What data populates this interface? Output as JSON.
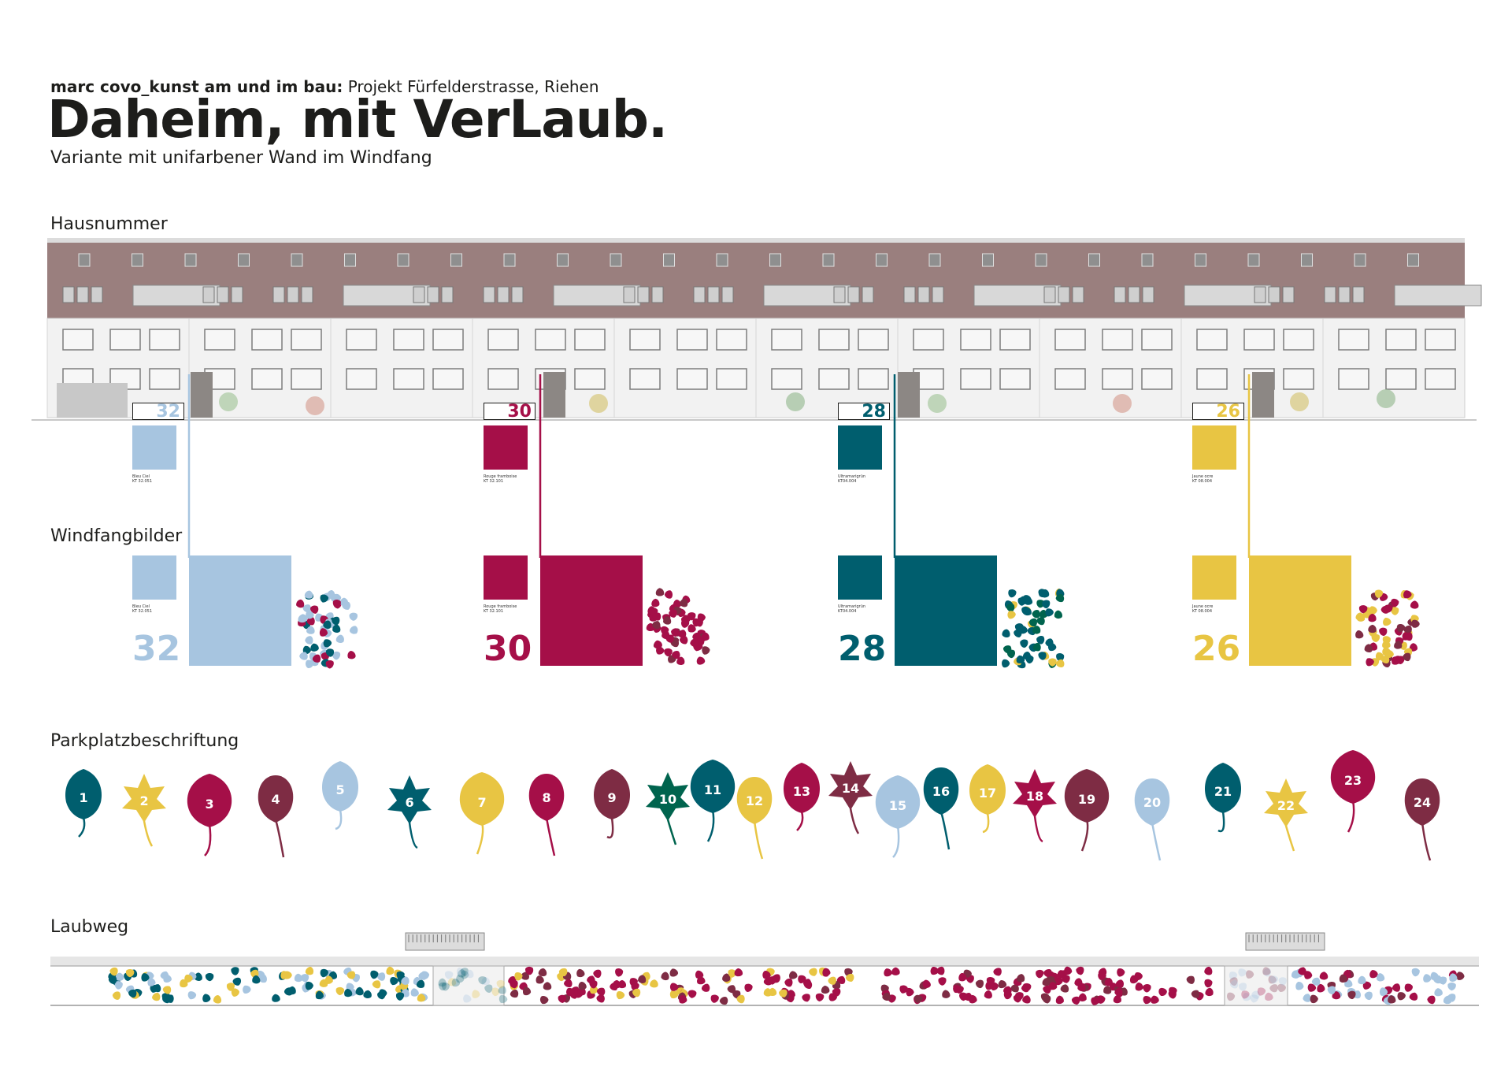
{
  "header": {
    "author": "marc covo_kunst am und im bau:",
    "project": " Projekt  Fürfelderstrasse, Riehen",
    "title": "Daheim, mit VerLaub.",
    "subtitle": "Variante mit unifarbener Wand im Windfang"
  },
  "sections": {
    "hausnummer": "Hausnummer",
    "windfang": "Windfangbilder",
    "parkplatz": "Parkplatzbeschriftung",
    "laubweg": "Laubweg"
  },
  "houses": [
    {
      "number": "32",
      "color": "#a7c5e0",
      "caption": "Bleu Ciel\nKT 32.051"
    },
    {
      "number": "30",
      "color": "#a50f48",
      "caption": "Rouge framboise\nKT 32.101"
    },
    {
      "number": "28",
      "color": "#005e6e",
      "caption": "Ultramarigrün\nKT04.004"
    },
    {
      "number": "26",
      "color": "#e8c543",
      "caption": "Jaune ocre\nKT 08.004"
    }
  ],
  "colors": {
    "blue": "#a7c5e0",
    "raspberry": "#a50f48",
    "teal": "#005e6e",
    "yellow": "#e8c543",
    "bordeaux": "#7e2c44",
    "green": "#00644e",
    "roof": "#9a7f7e",
    "facade": "#f2f2f2"
  },
  "parking_leaves": [
    {
      "n": "1",
      "color": "teal"
    },
    {
      "n": "2",
      "color": "yellow"
    },
    {
      "n": "3",
      "color": "raspberry"
    },
    {
      "n": "4",
      "color": "bordeaux"
    },
    {
      "n": "5",
      "color": "blue"
    },
    {
      "n": "6",
      "color": "teal"
    },
    {
      "n": "7",
      "color": "yellow"
    },
    {
      "n": "8",
      "color": "raspberry"
    },
    {
      "n": "9",
      "color": "bordeaux"
    },
    {
      "n": "10",
      "color": "green"
    },
    {
      "n": "11",
      "color": "teal"
    },
    {
      "n": "12",
      "color": "yellow"
    },
    {
      "n": "13",
      "color": "raspberry"
    },
    {
      "n": "14",
      "color": "bordeaux"
    },
    {
      "n": "15",
      "color": "blue"
    },
    {
      "n": "16",
      "color": "teal"
    },
    {
      "n": "17",
      "color": "yellow"
    },
    {
      "n": "18",
      "color": "raspberry"
    },
    {
      "n": "19",
      "color": "bordeaux"
    },
    {
      "n": "20",
      "color": "blue"
    },
    {
      "n": "21",
      "color": "teal"
    },
    {
      "n": "22",
      "color": "yellow"
    },
    {
      "n": "23",
      "color": "raspberry"
    },
    {
      "n": "24",
      "color": "bordeaux"
    }
  ]
}
